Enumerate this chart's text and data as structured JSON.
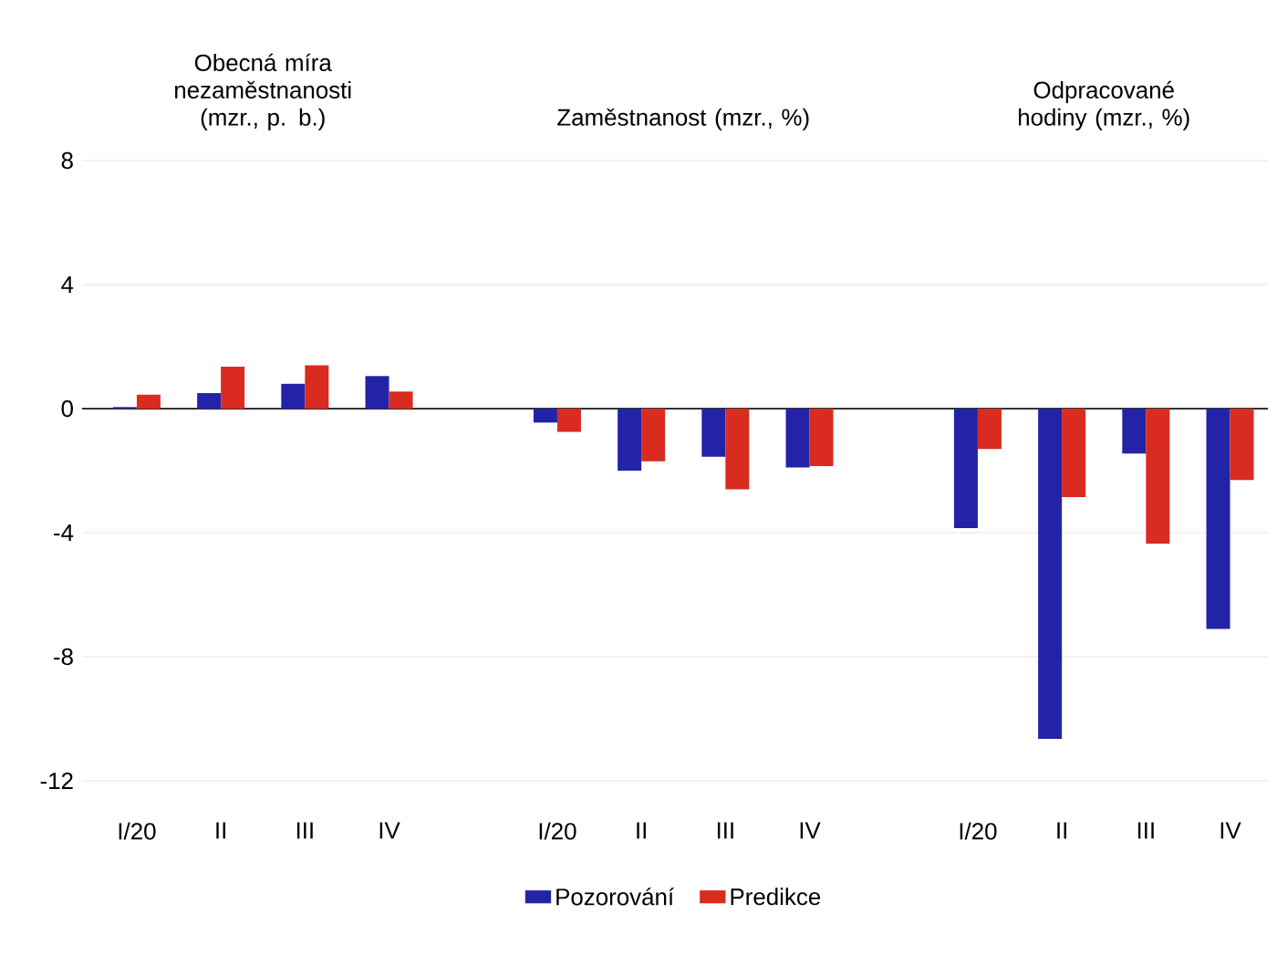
{
  "chart_data": {
    "type": "bar",
    "categories": [
      "I/20",
      "II",
      "III",
      "IV",
      null,
      "I/20",
      "II",
      "III",
      "IV",
      null,
      "I/20",
      "II",
      "III",
      "IV"
    ],
    "series": [
      {
        "name": "Pozorování",
        "color": "#2323a8",
        "values": [
          0.05,
          0.5,
          0.8,
          1.05,
          null,
          -0.45,
          -2.0,
          -1.55,
          -1.9,
          null,
          -3.85,
          -10.65,
          -1.45,
          -7.1
        ]
      },
      {
        "name": "Predikce",
        "color": "#d92b20",
        "values": [
          0.45,
          1.35,
          1.4,
          0.55,
          null,
          -0.75,
          -1.7,
          -2.6,
          -1.85,
          null,
          -1.3,
          -2.85,
          -4.35,
          -2.3
        ]
      }
    ],
    "annotations": [
      "Obecná míra nezaměstnanosti (mzr., p. b.)",
      "Zaměstnanost (mzr., %)",
      "Odpracované hodiny (mzr., %)"
    ],
    "ylim": [
      -12,
      8
    ],
    "yticks": [
      -12,
      -8,
      -4,
      0,
      4,
      8
    ],
    "ref_lines": [
      {
        "axis": "y",
        "value": 0,
        "color": "#333333"
      }
    ],
    "grid": "y",
    "legend": "bottom"
  }
}
